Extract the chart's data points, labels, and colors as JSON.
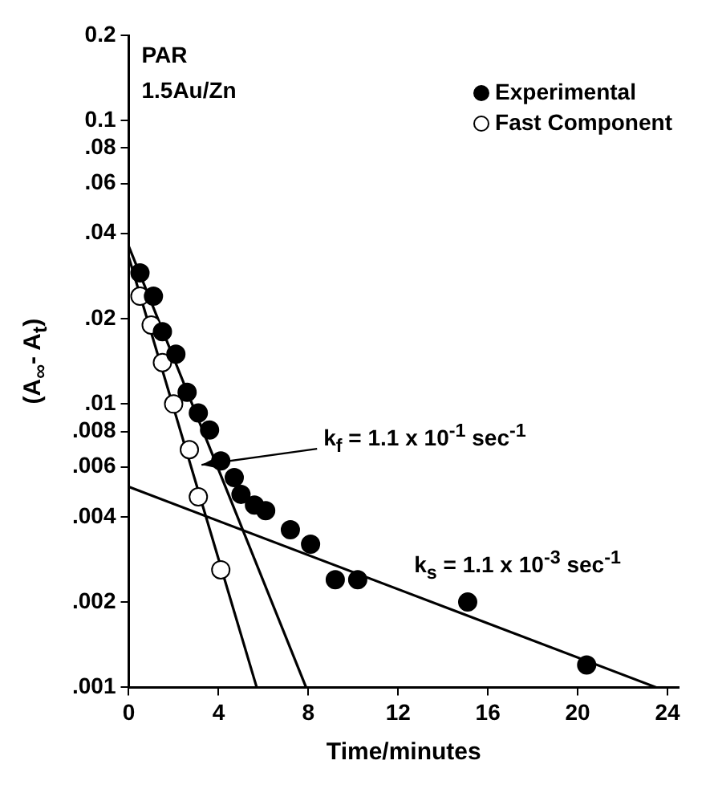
{
  "chart_data": {
    "type": "scatter",
    "xlabel": "Time/minutes",
    "ylabel": "(A$_{∞}$- A$_{t}$)",
    "xlim": [
      0,
      24.5
    ],
    "xticks": [
      0,
      4,
      8,
      12,
      16,
      20,
      24
    ],
    "ylim": [
      0.001,
      0.2
    ],
    "yticks": [
      0.2,
      0.1,
      {
        "value": 0.08,
        "label": ".08"
      },
      {
        "value": 0.06,
        "label": ".06"
      },
      {
        "value": 0.04,
        "label": ".04"
      },
      {
        "value": 0.02,
        "label": ".02"
      },
      {
        "value": 0.01,
        "label": ".01"
      },
      {
        "value": 0.008,
        "label": ".008"
      },
      {
        "value": 0.006,
        "label": ".006"
      },
      {
        "value": 0.004,
        "label": ".004"
      },
      {
        "value": 0.002,
        "label": ".002"
      },
      {
        "value": 0.001,
        "label": ".001"
      }
    ],
    "log": "y",
    "grid": false,
    "legend": "top right",
    "marker": "circle",
    "series": [
      {
        "name": "Experimental",
        "color": "#000000",
        "x": [
          0.5,
          1.1,
          1.5,
          2.1,
          2.6,
          3.1,
          3.6,
          4.1,
          4.7,
          5.0,
          5.6,
          6.1,
          7.2,
          8.1,
          9.2,
          10.2,
          15.1,
          20.4
        ],
        "values": [
          0.029,
          0.024,
          0.018,
          0.015,
          0.011,
          0.0093,
          0.0081,
          0.0063,
          0.0055,
          0.0048,
          0.0044,
          0.0042,
          0.0036,
          0.0032,
          0.0024,
          0.0024,
          0.002,
          0.0012
        ]
      },
      {
        "name": "Fast Component",
        "color": "#ffffff",
        "x": [
          0.5,
          1.0,
          1.5,
          2.0,
          2.7,
          3.1,
          4.1
        ],
        "values": [
          0.024,
          0.019,
          0.014,
          0.01,
          0.0069,
          0.0047,
          0.0026
        ]
      },
      {
        "type": "line",
        "color": "#000000",
        "marker": "none",
        "x": [
          0,
          5.7
        ],
        "values": [
          0.033,
          0.001
        ]
      },
      {
        "type": "line",
        "color": "#000000",
        "marker": "none",
        "x": [
          0,
          7.9
        ],
        "values": [
          0.036,
          0.001
        ]
      },
      {
        "type": "line",
        "color": "#000000",
        "marker": "none",
        "x": [
          0,
          23.5
        ],
        "values": [
          0.0051,
          0.001
        ]
      }
    ],
    "annotations": [
      "PAR",
      "1.5Au/Zn",
      {
        "text": "k$_{f}$ = 1.1 x 10$^{-1}$ sec$^{-1}$",
        "x": 3.1,
        "y": 0.0061
      },
      {
        "text": "k$_{s}$ = 1.1 x 10$^{-3}$ sec$^{-1}$",
        "x": 15,
        "y": 0.0018
      }
    ]
  }
}
